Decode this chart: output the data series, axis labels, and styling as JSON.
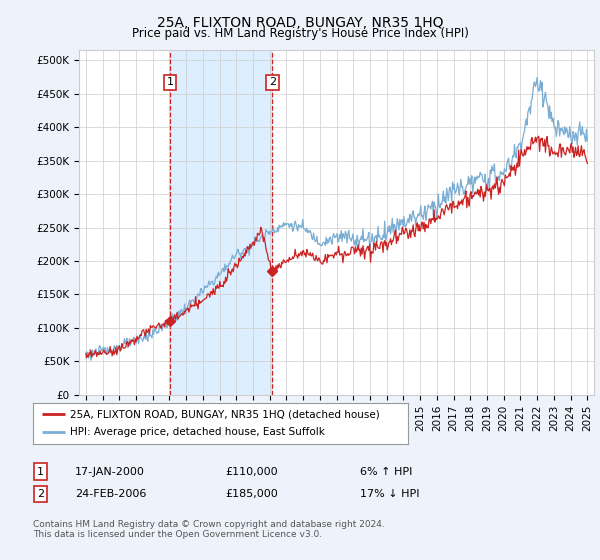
{
  "title": "25A, FLIXTON ROAD, BUNGAY, NR35 1HQ",
  "subtitle": "Price paid vs. HM Land Registry's House Price Index (HPI)",
  "ylabel_ticks": [
    "£0",
    "£50K",
    "£100K",
    "£150K",
    "£200K",
    "£250K",
    "£300K",
    "£350K",
    "£400K",
    "£450K",
    "£500K"
  ],
  "ytick_values": [
    0,
    50000,
    100000,
    150000,
    200000,
    250000,
    300000,
    350000,
    400000,
    450000,
    500000
  ],
  "ylim": [
    0,
    515000
  ],
  "xlim_start": 1994.6,
  "xlim_end": 2025.4,
  "hpi_color": "#7aadd4",
  "price_color": "#cc2222",
  "shade_color": "#ddeeff",
  "background_color": "#eef3fb",
  "plot_bg_color": "#ffffff",
  "grid_color": "#cccccc",
  "transaction1_x": 2000.04,
  "transaction1_y": 110000,
  "transaction2_x": 2006.15,
  "transaction2_y": 185000,
  "legend_label_price": "25A, FLIXTON ROAD, BUNGAY, NR35 1HQ (detached house)",
  "legend_label_hpi": "HPI: Average price, detached house, East Suffolk",
  "table_row1_num": "1",
  "table_row1_date": "17-JAN-2000",
  "table_row1_price": "£110,000",
  "table_row1_hpi": "6% ↑ HPI",
  "table_row2_num": "2",
  "table_row2_date": "24-FEB-2006",
  "table_row2_price": "£185,000",
  "table_row2_hpi": "17% ↓ HPI",
  "footer": "Contains HM Land Registry data © Crown copyright and database right 2024.\nThis data is licensed under the Open Government Licence v3.0.",
  "title_fontsize": 10,
  "subtitle_fontsize": 8.5,
  "tick_fontsize": 7.5,
  "legend_fontsize": 7.5,
  "table_fontsize": 8,
  "footer_fontsize": 6.5
}
